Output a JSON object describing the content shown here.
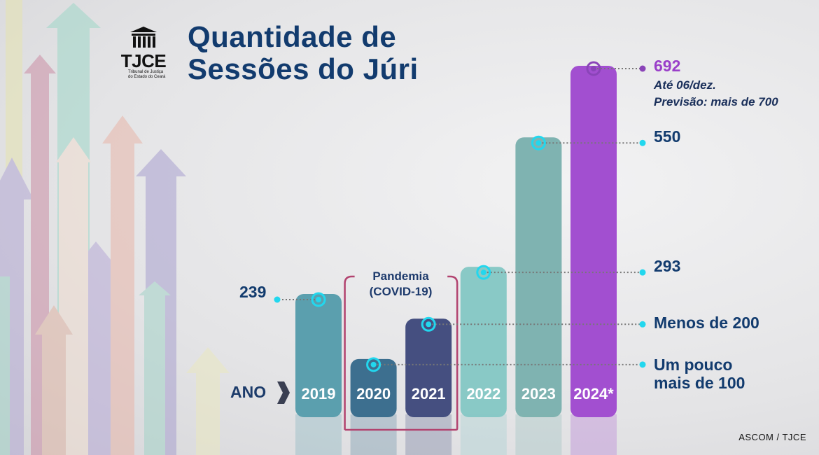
{
  "title_line1": "Quantidade de",
  "title_line2": "Sessões do Júri",
  "logo": {
    "text": "TJCE",
    "subtitle_line1": "Tribunal de Justiça",
    "subtitle_line2": "do Estado do Ceará"
  },
  "pandemic_label_line1": "Pandemia",
  "pandemic_label_line2": "(COVID-19)",
  "year_axis_label": "ANO",
  "credit": "ASCOM / TJCE",
  "annotations": {
    "v2019": "239",
    "v2024": "692",
    "v2024_note1": "Até 06/dez.",
    "v2024_note2": "Previsão: mais de 700",
    "v2023": "550",
    "v2022": "293",
    "v2021": "Menos de 200",
    "v2020_line1": "Um pouco",
    "v2020_line2": "mais de 100"
  },
  "colors": {
    "bar2019": "#5b9fae",
    "bar2020": "#3d6f8f",
    "bar2021": "#454f80",
    "bar2022": "#89c9c6",
    "bar2023": "#7fb3b1",
    "bar2024": "#a24fd0",
    "marker": "#22d7ee",
    "marker2024": "#8a44b8",
    "text": "#123b6e",
    "frame": "#b2436f"
  },
  "chart_data": {
    "type": "bar",
    "categories": [
      "2019",
      "2020",
      "2021",
      "2022",
      "2023",
      "2024*"
    ],
    "values": [
      239,
      110,
      190,
      293,
      550,
      692
    ],
    "ylim": [
      0,
      700
    ],
    "grid": false,
    "legend": "none"
  }
}
